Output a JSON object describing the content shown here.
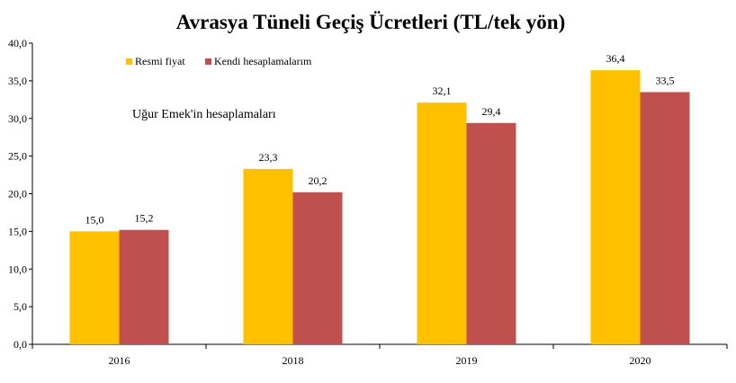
{
  "chart_data": {
    "type": "bar",
    "title": "Avrasya Tüneli Geçiş Ücretleri (TL/tek yön)",
    "categories": [
      "2016",
      "2018",
      "2019",
      "2020"
    ],
    "series": [
      {
        "name": "Resmi fiyat",
        "color": "#FFC000",
        "values": [
          15.0,
          23.3,
          32.1,
          36.4
        ],
        "labels": [
          "15,0",
          "23,3",
          "32,1",
          "36,4"
        ]
      },
      {
        "name": "Kendi hesaplamalarım",
        "color": "#C0504D",
        "values": [
          15.2,
          20.2,
          29.4,
          33.5
        ],
        "labels": [
          "15,2",
          "20,2",
          "29,4",
          "33,5"
        ]
      }
    ],
    "ylim": [
      0,
      40
    ],
    "yticks": [
      0,
      5,
      10,
      15,
      20,
      25,
      30,
      35,
      40
    ],
    "ytick_labels": [
      "0,0",
      "5,0",
      "10,0",
      "15,0",
      "20,0",
      "25,0",
      "30,0",
      "35,0",
      "40,0"
    ],
    "xlabel": "",
    "ylabel": "",
    "grid": false,
    "legend_position": "top-left",
    "annotation": "Uğur Emek'in hesaplamaları"
  }
}
